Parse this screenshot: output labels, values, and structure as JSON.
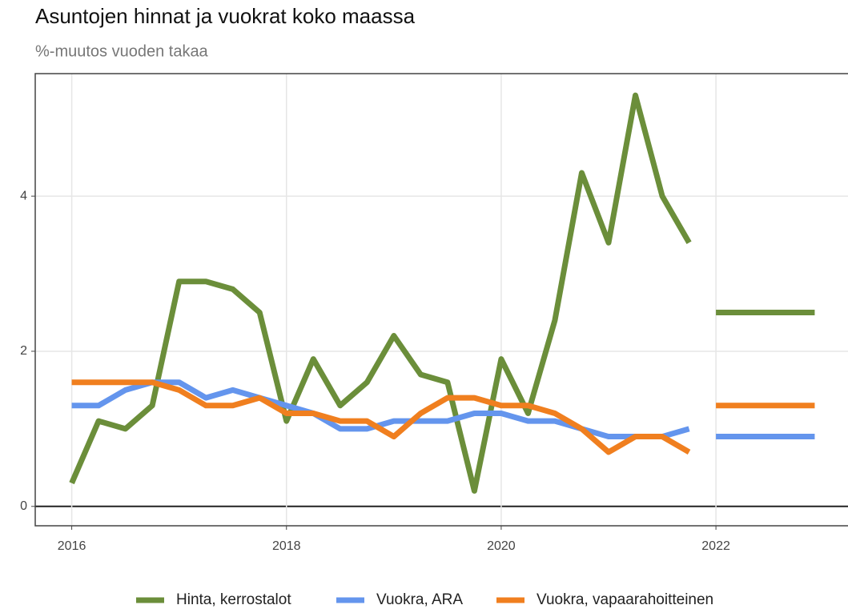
{
  "chart_data": {
    "type": "line",
    "title": "Asuntojen hinnat ja vuokrat koko maassa",
    "subtitle": "%-muutos vuoden takaa",
    "x": [
      2016,
      2016.25,
      2016.5,
      2016.75,
      2017,
      2017.25,
      2017.5,
      2017.75,
      2018,
      2018.25,
      2018.5,
      2018.75,
      2019,
      2019.25,
      2019.5,
      2019.75,
      2020,
      2020.25,
      2020.5,
      2020.75,
      2021,
      2021.25,
      2021.5,
      2021.75,
      2021.875,
      2022,
      2022.92
    ],
    "series": [
      {
        "name": "Hinta, kerrostalot",
        "color": "#6b8e3a",
        "values": [
          0.3,
          1.1,
          1.0,
          1.3,
          2.9,
          2.9,
          2.8,
          2.5,
          1.1,
          1.9,
          1.3,
          1.6,
          2.2,
          1.7,
          1.6,
          0.2,
          1.9,
          1.2,
          2.4,
          4.3,
          3.4,
          5.3,
          4.0,
          3.4,
          null,
          2.5,
          2.5
        ]
      },
      {
        "name": "Vuokra, ARA",
        "color": "#6495ed",
        "values": [
          1.3,
          1.3,
          1.5,
          1.6,
          1.6,
          1.4,
          1.5,
          1.4,
          1.3,
          1.2,
          1.0,
          1.0,
          1.1,
          1.1,
          1.1,
          1.2,
          1.2,
          1.1,
          1.1,
          1.0,
          0.9,
          0.9,
          0.9,
          1.0,
          null,
          0.9,
          0.9
        ]
      },
      {
        "name": "Vuokra, vapaarahoitteinen",
        "color": "#f07f1f",
        "values": [
          1.6,
          1.6,
          1.6,
          1.6,
          1.5,
          1.3,
          1.3,
          1.4,
          1.2,
          1.2,
          1.1,
          1.1,
          0.9,
          1.2,
          1.4,
          1.4,
          1.3,
          1.3,
          1.2,
          1.0,
          0.7,
          0.9,
          0.9,
          0.7,
          null,
          1.3,
          1.3
        ]
      }
    ],
    "xlim": [
      2015.66,
      2023.23
    ],
    "xticks": [
      2016,
      2018,
      2020,
      2022
    ],
    "ylim": [
      -0.25,
      5.58
    ],
    "yticks": [
      0,
      2,
      4
    ],
    "grid": true,
    "legend": "bottom"
  }
}
